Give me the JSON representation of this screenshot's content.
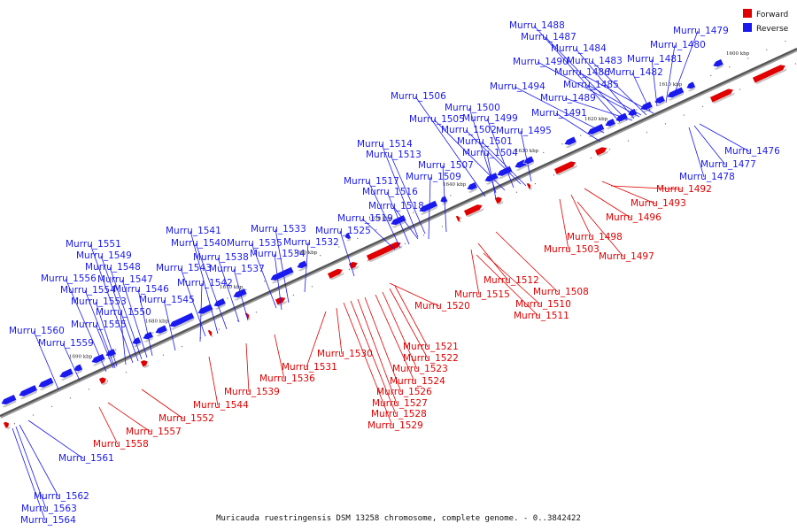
{
  "caption": "Muricauda ruestringensis DSM 13258 chromosome, complete genome. - 0..3842422",
  "legend": [
    {
      "label": "Forward",
      "color": "#e00000"
    },
    {
      "label": "Reverse",
      "color": "#1a1aee"
    }
  ],
  "colors": {
    "forward": "#e00000",
    "reverse": "#1a1aee"
  },
  "ticks": [
    "1600 kbp",
    "1610 kbp",
    "1620 kbp",
    "1630 kbp",
    "1640 kbp",
    "1650 kbp",
    "1660 kbp",
    "1670 kbp",
    "1680 kbp",
    "1690 kbp"
  ],
  "forward_labels": [
    "Murru_1492",
    "Murru_1493",
    "Murru_1496",
    "Murru_1498",
    "Murru_1503",
    "Murru_1497",
    "Murru_1508",
    "Murru_1512",
    "Murru_1515",
    "Murru_1510",
    "Murru_1511",
    "Murru_1520",
    "Murru_1521",
    "Murru_1522",
    "Murru_1523",
    "Murru_1524",
    "Murru_1526",
    "Murru_1527",
    "Murru_1528",
    "Murru_1529",
    "Murru_1530",
    "Murru_1531",
    "Murru_1536",
    "Murru_1539",
    "Murru_1544",
    "Murru_1552",
    "Murru_1557",
    "Murru_1558"
  ],
  "reverse_labels": [
    "Murru_1488",
    "Murru_1487",
    "Murru_1484",
    "Murru_1490",
    "Murru_1483",
    "Murru_1486",
    "Murru_1479",
    "Murru_1480",
    "Murru_1481",
    "Murru_1482",
    "Murru_1494",
    "Murru_1485",
    "Murru_1489",
    "Murru_1491",
    "Murru_1506",
    "Murru_1500",
    "Murru_1505",
    "Murru_1499",
    "Murru_1502",
    "Murru_1495",
    "Murru_1501",
    "Murru_1514",
    "Murru_1513",
    "Murru_1504",
    "Murru_1507",
    "Murru_1509",
    "Murru_1517",
    "Murru_1516",
    "Murru_1518",
    "Murru_1519",
    "Murru_1525",
    "Murru_1541",
    "Murru_1533",
    "Murru_1540",
    "Murru_1535",
    "Murru_1532",
    "Murru_1538",
    "Murru_1534",
    "Murru_1543",
    "Murru_1537",
    "Murru_1542",
    "Murru_1545",
    "Murru_1551",
    "Murru_1549",
    "Murru_1548",
    "Murru_1547",
    "Murru_1556",
    "Murru_1546",
    "Murru_1554",
    "Murru_1553",
    "Murru_1550",
    "Murru_1555",
    "Murru_1560",
    "Murru_1559",
    "Murru_1476",
    "Murru_1477",
    "Murru_1478",
    "Murru_1561",
    "Murru_1562",
    "Murru_1563",
    "Murru_1564"
  ]
}
